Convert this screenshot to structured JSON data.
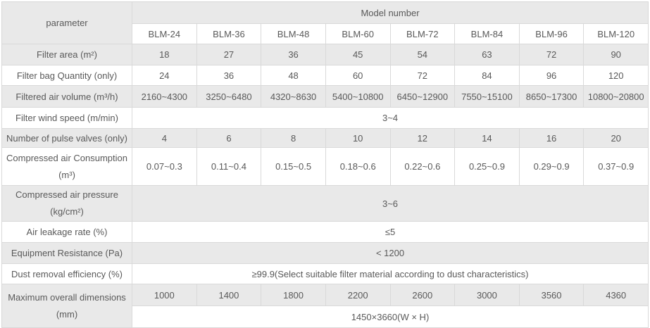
{
  "table": {
    "header": {
      "parameter_label": "parameter",
      "model_number_label": "Model number",
      "models": [
        "BLM-24",
        "BLM-36",
        "BLM-48",
        "BLM-60",
        "BLM-72",
        "BLM-84",
        "BLM-96",
        "BLM-120"
      ]
    },
    "rows": [
      {
        "label": "Filter area (m²)",
        "values": [
          "18",
          "27",
          "36",
          "45",
          "54",
          "63",
          "72",
          "90"
        ]
      },
      {
        "label": "Filter bag Quantity (only)",
        "values": [
          "24",
          "36",
          "48",
          "60",
          "72",
          "84",
          "96",
          "120"
        ]
      },
      {
        "label": "Filtered air volume (m³/h)",
        "values": [
          "2160~4300",
          "3250~6480",
          "4320~8630",
          "5400~10800",
          "6450~12900",
          "7550~15100",
          "8650~17300",
          "10800~20800"
        ]
      },
      {
        "label": "Filter wind speed (m/min)",
        "span_value": "3~4"
      },
      {
        "label": "Number of pulse valves (only)",
        "values": [
          "4",
          "6",
          "8",
          "10",
          "12",
          "14",
          "16",
          "20"
        ]
      },
      {
        "label": "Compressed air Consumption",
        "label_line2": "(m³)",
        "values": [
          "0.07~0.3",
          "0.11~0.4",
          "0.15~0.5",
          "0.18~0.6",
          "0.22~0.6",
          "0.25~0.9",
          "0.29~0.9",
          "0.37~0.9"
        ]
      },
      {
        "label": "Compressed air pressure",
        "label_line2": "(kg/cm²)",
        "span_value": "3~6"
      },
      {
        "label": "Air leakage rate (%)",
        "span_value": "≤5"
      },
      {
        "label": "Equipment Resistance (Pa)",
        "span_value": "< 1200"
      },
      {
        "label": "Dust removal efficiency (%)",
        "span_value": "≥99.9(Select suitable filter material according to dust characteristics)"
      },
      {
        "label": "Maximum overall dimensions",
        "label_line2": "(mm)",
        "values": [
          "1000",
          "1400",
          "1800",
          "2200",
          "2600",
          "3000",
          "3560",
          "4360"
        ],
        "span_value": "1450×3660(W × H)"
      }
    ],
    "colors": {
      "stripe_gray": "#e9e9e9",
      "border": "#d9d9d9",
      "text": "#595959"
    }
  }
}
